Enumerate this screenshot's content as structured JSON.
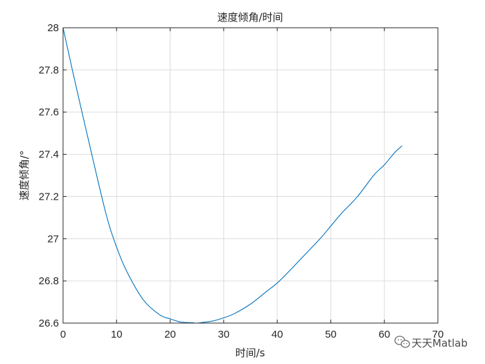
{
  "chart_data": {
    "type": "line",
    "title": "速度倾角/时间",
    "xlabel": "时间/s",
    "ylabel": "速度倾角/°",
    "xlim": [
      0,
      70
    ],
    "ylim": [
      26.6,
      28
    ],
    "xticks": [
      0,
      10,
      20,
      30,
      40,
      50,
      60,
      70
    ],
    "yticks": [
      26.6,
      26.8,
      27,
      27.2,
      27.4,
      27.6,
      27.8,
      28
    ],
    "xtick_labels": [
      "0",
      "10",
      "20",
      "30",
      "40",
      "50",
      "60",
      "70"
    ],
    "ytick_labels": [
      "26.6",
      "26.8",
      "27",
      "27.2",
      "27.4",
      "27.6",
      "27.8",
      "28"
    ],
    "grid": true,
    "series": [
      {
        "color": "#0072BD",
        "x": [
          0,
          2,
          5,
          8,
          10,
          12,
          15,
          18,
          20,
          22,
          24,
          25,
          26,
          28,
          30,
          32,
          35,
          38,
          40,
          42,
          45,
          48,
          50,
          52,
          55,
          58,
          60,
          62,
          63.3
        ],
        "y": [
          28.0,
          27.77,
          27.44,
          27.12,
          26.96,
          26.84,
          26.71,
          26.64,
          26.62,
          26.605,
          26.602,
          26.6,
          26.603,
          26.61,
          26.625,
          26.645,
          26.69,
          26.75,
          26.79,
          26.84,
          26.92,
          27.0,
          27.06,
          27.12,
          27.2,
          27.3,
          27.35,
          27.41,
          27.44
        ]
      }
    ]
  },
  "watermark": {
    "icon": "wechat-icon",
    "text": "天天Matlab"
  }
}
